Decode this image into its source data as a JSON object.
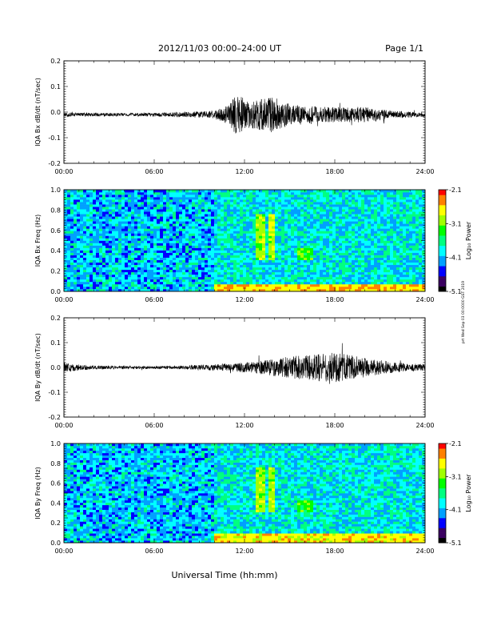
{
  "header": {
    "title": "2012/11/03  00:00–24:00 UT",
    "page_label": "Page 1/1"
  },
  "footer": {
    "xlabel": "Universal Time (hh:mm)",
    "side_note": "prt Wed Sep 03 00:0000 GST 2019"
  },
  "x_ticks": [
    "00:00",
    "06:00",
    "12:00",
    "18:00",
    "24:00"
  ],
  "x_range_hours": [
    0,
    24
  ],
  "colormap": {
    "labels": [
      "-2.1",
      "-3.1",
      "-4.1",
      "-5.1"
    ],
    "label_values": [
      -2.1,
      -3.1,
      -4.1,
      -5.1
    ],
    "range": [
      -5.1,
      -2.1
    ],
    "title": "Log₁₀ Power",
    "colors": [
      "#000000",
      "#3a0060",
      "#0000ff",
      "#00a0ff",
      "#00ffff",
      "#00ff80",
      "#00ff00",
      "#a0ff00",
      "#ffff00",
      "#ff8000",
      "#ff0000"
    ]
  },
  "chart_data": [
    {
      "type": "line",
      "ylabel": "IQA Bx dB/dt (nT/sec)",
      "ylim": [
        -0.2,
        0.2
      ],
      "yticks": [
        0.2,
        0.1,
        0.0,
        -0.1,
        -0.2
      ],
      "ytick_labels": [
        "0.2",
        "0.1",
        "0.0",
        "-0.1",
        "-0.2"
      ],
      "x": [
        0,
        2,
        4,
        6,
        8,
        10,
        11,
        11.5,
        12,
        13,
        14,
        15,
        16,
        18,
        20,
        22,
        24
      ],
      "amplitude_envelope": [
        0.008,
        0.007,
        0.006,
        0.007,
        0.01,
        0.015,
        0.04,
        0.09,
        0.06,
        0.06,
        0.07,
        0.04,
        0.035,
        0.03,
        0.03,
        0.015,
        0.008
      ],
      "baseline": -0.01
    },
    {
      "type": "heatmap",
      "ylabel": "IQA Bx Freq (Hz)",
      "ylim": [
        0,
        1.0
      ],
      "yticks": [
        1.0,
        0.8,
        0.6,
        0.4,
        0.2,
        0.0
      ],
      "ytick_labels": [
        "1.0",
        "0.8",
        "0.6",
        "0.4",
        "0.2",
        "0.0"
      ],
      "colorbar_label": "Log₁₀ Power",
      "features": [
        {
          "t_start": 12.7,
          "t_end": 13.3,
          "f_low": 0.3,
          "f_high": 0.75,
          "log_power": -3.0
        },
        {
          "t_start": 13.6,
          "t_end": 14.1,
          "f_low": 0.3,
          "f_high": 0.75,
          "log_power": -3.0
        },
        {
          "t_start": 15.5,
          "t_end": 16.5,
          "f_low": 0.3,
          "f_high": 0.42,
          "log_power": -3.3
        },
        {
          "t_start": 10.0,
          "t_end": 24.0,
          "f_low": 0.0,
          "f_high": 0.08,
          "log_power": -2.6
        }
      ],
      "background_log_power": -3.9
    },
    {
      "type": "line",
      "ylabel": "IQA By dB/dt (nT/sec)",
      "ylim": [
        -0.2,
        0.2
      ],
      "yticks": [
        0.2,
        0.1,
        0.0,
        -0.1,
        -0.2
      ],
      "ytick_labels": [
        "0.2",
        "0.1",
        "0.0",
        "-0.1",
        "-0.2"
      ],
      "x": [
        0,
        1,
        2,
        4,
        6,
        8,
        10,
        12,
        14,
        15,
        16,
        17,
        18,
        19,
        20,
        22,
        24
      ],
      "amplitude_envelope": [
        0.02,
        0.012,
        0.008,
        0.006,
        0.006,
        0.008,
        0.012,
        0.02,
        0.035,
        0.045,
        0.05,
        0.055,
        0.06,
        0.05,
        0.04,
        0.02,
        0.012
      ],
      "baseline": 0.0
    },
    {
      "type": "heatmap",
      "ylabel": "IQA By Freq (Hz)",
      "ylim": [
        0,
        1.0
      ],
      "yticks": [
        1.0,
        0.8,
        0.6,
        0.4,
        0.2,
        0.0
      ],
      "ytick_labels": [
        "1.0",
        "0.8",
        "0.6",
        "0.4",
        "0.2",
        "0.0"
      ],
      "colorbar_label": "Log₁₀ Power",
      "features": [
        {
          "t_start": 12.7,
          "t_end": 13.3,
          "f_low": 0.3,
          "f_high": 0.75,
          "log_power": -3.0
        },
        {
          "t_start": 13.6,
          "t_end": 14.1,
          "f_low": 0.3,
          "f_high": 0.75,
          "log_power": -3.0
        },
        {
          "t_start": 15.5,
          "t_end": 16.5,
          "f_low": 0.3,
          "f_high": 0.42,
          "log_power": -3.3
        },
        {
          "t_start": 10.0,
          "t_end": 24.0,
          "f_low": 0.0,
          "f_high": 0.1,
          "log_power": -2.7
        }
      ],
      "background_log_power": -3.9
    }
  ]
}
